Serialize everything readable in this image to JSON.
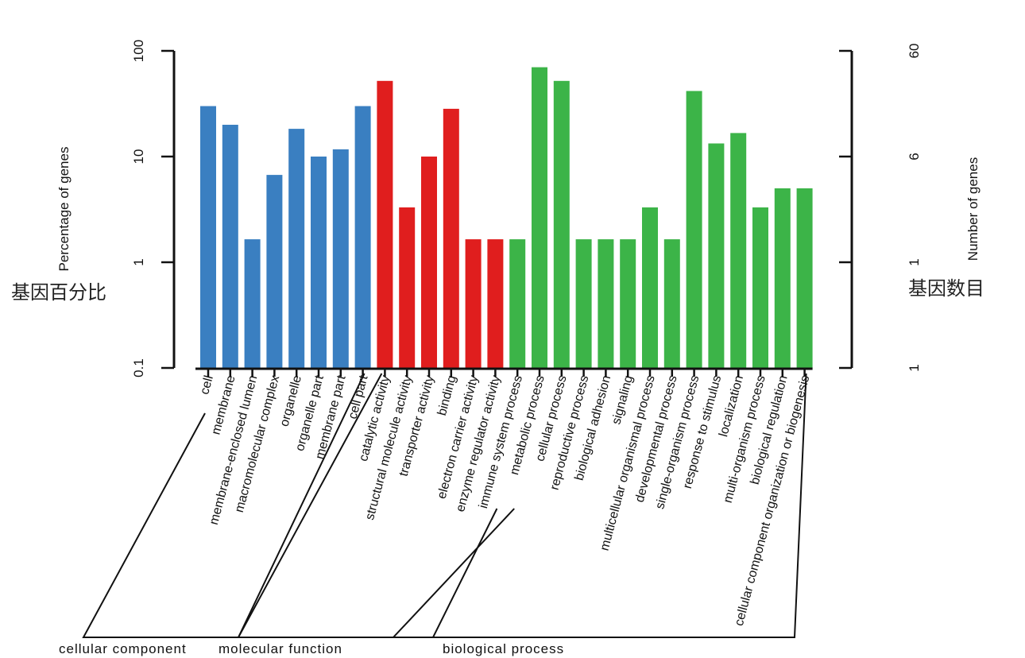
{
  "chart_data": {
    "type": "bar",
    "y_scale": "log",
    "left_axis": {
      "title": "Percentage of genes",
      "cn_title": "基因百分比",
      "ylim": [
        0.1,
        100
      ],
      "ticks": [
        "100",
        "10",
        "1",
        "0.1"
      ],
      "tick_values": [
        100,
        10,
        1,
        0.1
      ]
    },
    "right_axis": {
      "title": "Number of genes",
      "cn_title": "基因数目",
      "ticks": [
        "60",
        "6",
        "1",
        "1"
      ]
    },
    "colors": {
      "cellular component": "#3a7fc1",
      "molecular function": "#e01e1e",
      "biological process": "#3cb448"
    },
    "groups": [
      {
        "name": "cellular component",
        "label": "cellular component",
        "start": 0,
        "end": 8
      },
      {
        "name": "molecular function",
        "label": "molecular function",
        "start": 8,
        "end": 14
      },
      {
        "name": "biological process",
        "label": "biological process",
        "start": 14,
        "end": 28
      }
    ],
    "categories": [
      "cell",
      "membrane",
      "membrane-enclosed lumen",
      "macromolecular complex",
      "organelle",
      "organelle part",
      "membrane part",
      "cell part",
      "catalytic activity",
      "structural molecule activity",
      "transporter activity",
      "binding",
      "electron carrier activity",
      "enzyme regulator activity",
      "immune system process",
      "metabolic process",
      "cellular process",
      "reproductive process",
      "biological adhesion",
      "signaling",
      "multicellular organismal process",
      "developmental process",
      "single-organism process",
      "response to stimulus",
      "localization",
      "multi-organism process",
      "biological regulation",
      "cellular component organization or biogenesis"
    ],
    "values": [
      30,
      20,
      1.65,
      6.7,
      18.3,
      10,
      11.7,
      30,
      52,
      3.3,
      10,
      28.3,
      1.65,
      1.65,
      1.65,
      70,
      52,
      1.65,
      1.65,
      1.65,
      3.3,
      1.65,
      41.7,
      13.3,
      16.7,
      3.3,
      5,
      5
    ],
    "group_index": [
      0,
      0,
      0,
      0,
      0,
      0,
      0,
      0,
      1,
      1,
      1,
      1,
      1,
      1,
      2,
      2,
      2,
      2,
      2,
      2,
      2,
      2,
      2,
      2,
      2,
      2,
      2,
      2
    ]
  }
}
